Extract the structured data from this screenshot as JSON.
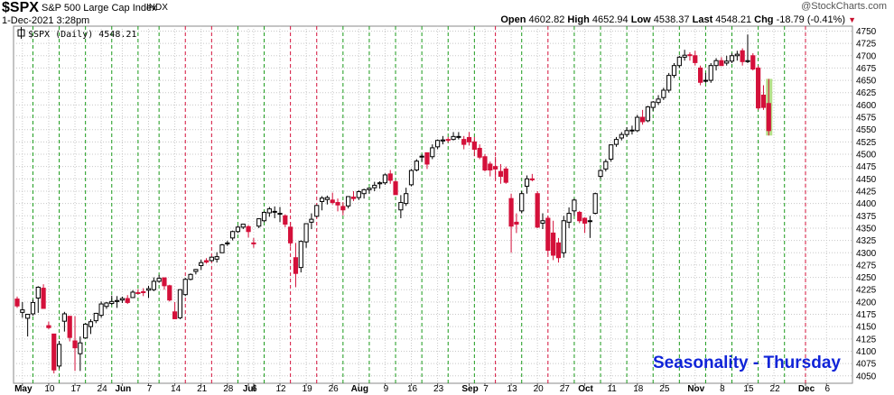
{
  "header": {
    "symbol": "$SPX",
    "description": "S&P 500 Large Cap Index",
    "exchange": "INDX",
    "date_time": "1-Dec-2021 3:28pm",
    "brand": "@StockCharts.com",
    "open_label": "Open",
    "open": "4602.82",
    "high_label": "High",
    "high": "4652.94",
    "low_label": "Low",
    "low": "4538.37",
    "last_label": "Last",
    "last": "4548.21",
    "chg_label": "Chg",
    "chg": "-18.79 (-0.41%)",
    "chg_arrow": "▼"
  },
  "colors": {
    "up": "#000000",
    "down": "#d4103a",
    "green_line": "#1a9a1a",
    "red_line": "#d4103a",
    "grid": "#c8c8c8",
    "annotation": "#1024d8",
    "highlight": "#b5e08a"
  },
  "chart_data": {
    "type": "candlestick",
    "legend": "$SPX (Daily) 4548.21",
    "annotation": "Seasonality - Thursday",
    "y_ticks": [
      4050,
      4075,
      4100,
      4125,
      4150,
      4175,
      4200,
      4225,
      4250,
      4275,
      4300,
      4325,
      4350,
      4375,
      4400,
      4425,
      4450,
      4475,
      4500,
      4525,
      4550,
      4575,
      4600,
      4625,
      4650,
      4675,
      4700,
      4725,
      4750
    ],
    "ylim": [
      4035,
      4760
    ],
    "x_labels": [
      "May",
      "10",
      "17",
      "24",
      "Jun",
      "7",
      "14",
      "21",
      "28",
      "Jul",
      "6",
      "12",
      "19",
      "26",
      "Aug",
      "9",
      "16",
      "23",
      "Sep",
      "7",
      "13",
      "20",
      "27",
      "Oct",
      "11",
      "18",
      "25",
      "Nov",
      "8",
      "15",
      "22",
      "Dec",
      "6"
    ],
    "x_label_bold": [
      true,
      false,
      false,
      false,
      true,
      false,
      false,
      false,
      false,
      true,
      false,
      false,
      false,
      false,
      true,
      false,
      false,
      false,
      true,
      false,
      false,
      false,
      false,
      true,
      false,
      false,
      false,
      true,
      false,
      false,
      false,
      true,
      false
    ],
    "x_label_slot": [
      1,
      6,
      11,
      16,
      20,
      25,
      30,
      35,
      40,
      44,
      45,
      50,
      55,
      60,
      65,
      70,
      75,
      80,
      86,
      89,
      94,
      99,
      104,
      108,
      113,
      118,
      123,
      129,
      134,
      139,
      144,
      150,
      154
    ],
    "thursday_slots": [
      3,
      8,
      13,
      18,
      23,
      27,
      32,
      37,
      42,
      47,
      52,
      57,
      62,
      67,
      72,
      77,
      82,
      87,
      91,
      96,
      101,
      106,
      111,
      116,
      121,
      126,
      131,
      136,
      141,
      146,
      150
    ],
    "thursday_down": [
      false,
      false,
      false,
      false,
      false,
      false,
      true,
      true,
      false,
      false,
      true,
      true,
      false,
      false,
      false,
      false,
      false,
      false,
      true,
      false,
      true,
      false,
      false,
      false,
      false,
      false,
      false,
      false,
      false,
      false,
      true
    ],
    "candles": [
      {
        "o": 4206,
        "h": 4211,
        "l": 4188,
        "c": 4192
      },
      {
        "o": 4179,
        "h": 4200,
        "l": 4168,
        "c": 4184
      },
      {
        "o": 4167,
        "h": 4176,
        "l": 4130,
        "c": 4175
      },
      {
        "o": 4176,
        "h": 4205,
        "l": 4172,
        "c": 4199
      },
      {
        "o": 4208,
        "h": 4232,
        "l": 4178,
        "c": 4230
      },
      {
        "o": 4228,
        "h": 4236,
        "l": 4192,
        "c": 4187
      },
      {
        "o": 4152,
        "h": 4160,
        "l": 4145,
        "c": 4148
      },
      {
        "o": 4135,
        "h": 4135,
        "l": 4055,
        "c": 4062
      },
      {
        "o": 4070,
        "h": 4121,
        "l": 4065,
        "c": 4114
      },
      {
        "o": 4161,
        "h": 4180,
        "l": 4140,
        "c": 4176
      },
      {
        "o": 4171,
        "h": 4171,
        "l": 4120,
        "c": 4128
      },
      {
        "o": 4121,
        "h": 4171,
        "l": 4060,
        "c": 4107
      },
      {
        "o": 4095,
        "h": 4130,
        "l": 4060,
        "c": 4117
      },
      {
        "o": 4127,
        "h": 4157,
        "l": 4126,
        "c": 4155
      },
      {
        "o": 4150,
        "h": 4165,
        "l": 4135,
        "c": 4160
      },
      {
        "o": 4162,
        "h": 4178,
        "l": 4157,
        "c": 4177
      },
      {
        "o": 4173,
        "h": 4201,
        "l": 4168,
        "c": 4196
      },
      {
        "o": 4191,
        "h": 4200,
        "l": 4186,
        "c": 4198
      },
      {
        "o": 4197,
        "h": 4213,
        "l": 4194,
        "c": 4201
      },
      {
        "o": 4201,
        "h": 4212,
        "l": 4188,
        "c": 4203
      },
      {
        "o": 4204,
        "h": 4211,
        "l": 4198,
        "c": 4207
      },
      {
        "o": 4207,
        "h": 4214,
        "l": 4196,
        "c": 4199
      },
      {
        "o": 4209,
        "h": 4224,
        "l": 4208,
        "c": 4220
      },
      {
        "o": 4219,
        "h": 4226,
        "l": 4216,
        "c": 4218
      },
      {
        "o": 4221,
        "h": 4228,
        "l": 4212,
        "c": 4219
      },
      {
        "o": 4224,
        "h": 4233,
        "l": 4208,
        "c": 4227
      },
      {
        "o": 4225,
        "h": 4250,
        "l": 4222,
        "c": 4242
      },
      {
        "o": 4242,
        "h": 4255,
        "l": 4239,
        "c": 4248
      },
      {
        "o": 4249,
        "h": 4250,
        "l": 4225,
        "c": 4233
      },
      {
        "o": 4233,
        "h": 4235,
        "l": 4201,
        "c": 4204
      },
      {
        "o": 4180,
        "h": 4200,
        "l": 4168,
        "c": 4166
      },
      {
        "o": 4168,
        "h": 4226,
        "l": 4165,
        "c": 4225
      },
      {
        "o": 4215,
        "h": 4249,
        "l": 4212,
        "c": 4246
      },
      {
        "o": 4246,
        "h": 4258,
        "l": 4244,
        "c": 4256
      },
      {
        "o": 4262,
        "h": 4267,
        "l": 4256,
        "c": 4266
      },
      {
        "o": 4274,
        "h": 4286,
        "l": 4265,
        "c": 4280
      },
      {
        "o": 4284,
        "h": 4289,
        "l": 4278,
        "c": 4281
      },
      {
        "o": 4284,
        "h": 4292,
        "l": 4282,
        "c": 4291
      },
      {
        "o": 4287,
        "h": 4301,
        "l": 4280,
        "c": 4292
      },
      {
        "o": 4300,
        "h": 4318,
        "l": 4300,
        "c": 4316
      },
      {
        "o": 4318,
        "h": 4324,
        "l": 4314,
        "c": 4320
      },
      {
        "o": 4330,
        "h": 4345,
        "l": 4325,
        "c": 4343
      },
      {
        "o": 4343,
        "h": 4355,
        "l": 4340,
        "c": 4352
      },
      {
        "o": 4352,
        "h": 4358,
        "l": 4348,
        "c": 4358
      },
      {
        "o": 4353,
        "h": 4356,
        "l": 4331,
        "c": 4343
      },
      {
        "o": 4320,
        "h": 4330,
        "l": 4310,
        "c": 4318
      },
      {
        "o": 4354,
        "h": 4369,
        "l": 4350,
        "c": 4369
      },
      {
        "o": 4365,
        "h": 4384,
        "l": 4362,
        "c": 4382
      },
      {
        "o": 4381,
        "h": 4393,
        "l": 4373,
        "c": 4389
      },
      {
        "o": 4383,
        "h": 4394,
        "l": 4370,
        "c": 4384
      },
      {
        "o": 4380,
        "h": 4393,
        "l": 4362,
        "c": 4380
      },
      {
        "o": 4375,
        "h": 4378,
        "l": 4352,
        "c": 4358
      },
      {
        "o": 4352,
        "h": 4362,
        "l": 4312,
        "c": 4320
      },
      {
        "o": 4290,
        "h": 4320,
        "l": 4230,
        "c": 4258
      },
      {
        "o": 4270,
        "h": 4325,
        "l": 4260,
        "c": 4323
      },
      {
        "o": 4322,
        "h": 4360,
        "l": 4310,
        "c": 4359
      },
      {
        "o": 4362,
        "h": 4380,
        "l": 4348,
        "c": 4368
      },
      {
        "o": 4374,
        "h": 4397,
        "l": 4372,
        "c": 4396
      },
      {
        "o": 4404,
        "h": 4415,
        "l": 4386,
        "c": 4411
      },
      {
        "o": 4408,
        "h": 4416,
        "l": 4398,
        "c": 4412
      },
      {
        "o": 4407,
        "h": 4422,
        "l": 4398,
        "c": 4402
      },
      {
        "o": 4402,
        "h": 4410,
        "l": 4384,
        "c": 4397
      },
      {
        "o": 4394,
        "h": 4403,
        "l": 4376,
        "c": 4387
      },
      {
        "o": 4395,
        "h": 4415,
        "l": 4390,
        "c": 4414
      },
      {
        "o": 4413,
        "h": 4425,
        "l": 4405,
        "c": 4410
      },
      {
        "o": 4412,
        "h": 4427,
        "l": 4407,
        "c": 4424
      },
      {
        "o": 4420,
        "h": 4430,
        "l": 4410,
        "c": 4428
      },
      {
        "o": 4428,
        "h": 4432,
        "l": 4420,
        "c": 4431
      },
      {
        "o": 4432,
        "h": 4444,
        "l": 4425,
        "c": 4437
      },
      {
        "o": 4440,
        "h": 4445,
        "l": 4430,
        "c": 4442
      },
      {
        "o": 4442,
        "h": 4461,
        "l": 4438,
        "c": 4458
      },
      {
        "o": 4460,
        "h": 4468,
        "l": 4440,
        "c": 4447
      },
      {
        "o": 4444,
        "h": 4447,
        "l": 4418,
        "c": 4418
      },
      {
        "o": 4387,
        "h": 4417,
        "l": 4370,
        "c": 4402
      },
      {
        "o": 4400,
        "h": 4432,
        "l": 4395,
        "c": 4420
      },
      {
        "o": 4438,
        "h": 4470,
        "l": 4435,
        "c": 4467
      },
      {
        "o": 4468,
        "h": 4490,
        "l": 4465,
        "c": 4486
      },
      {
        "o": 4495,
        "h": 4500,
        "l": 4485,
        "c": 4496
      },
      {
        "o": 4503,
        "h": 4503,
        "l": 4470,
        "c": 4480
      },
      {
        "o": 4495,
        "h": 4520,
        "l": 4490,
        "c": 4513
      },
      {
        "o": 4515,
        "h": 4530,
        "l": 4510,
        "c": 4528
      },
      {
        "o": 4527,
        "h": 4537,
        "l": 4520,
        "c": 4529
      },
      {
        "o": 4530,
        "h": 4535,
        "l": 4524,
        "c": 4529
      },
      {
        "o": 4530,
        "h": 4545,
        "l": 4528,
        "c": 4536
      },
      {
        "o": 4536,
        "h": 4545,
        "l": 4530,
        "c": 4536
      },
      {
        "o": 4530,
        "h": 4537,
        "l": 4510,
        "c": 4520
      },
      {
        "o": 4534,
        "h": 4545,
        "l": 4518,
        "c": 4525
      },
      {
        "o": 4525,
        "h": 4535,
        "l": 4496,
        "c": 4510
      },
      {
        "o": 4512,
        "h": 4520,
        "l": 4490,
        "c": 4494
      },
      {
        "o": 4495,
        "h": 4500,
        "l": 4465,
        "c": 4468
      },
      {
        "o": 4480,
        "h": 4485,
        "l": 4455,
        "c": 4468
      },
      {
        "o": 4475,
        "h": 4495,
        "l": 4450,
        "c": 4470
      },
      {
        "o": 4465,
        "h": 4480,
        "l": 4440,
        "c": 4455
      },
      {
        "o": 4470,
        "h": 4475,
        "l": 4440,
        "c": 4443
      },
      {
        "o": 4410,
        "h": 4420,
        "l": 4300,
        "c": 4354
      },
      {
        "o": 4362,
        "h": 4380,
        "l": 4340,
        "c": 4358
      },
      {
        "o": 4385,
        "h": 4425,
        "l": 4380,
        "c": 4420
      },
      {
        "o": 4435,
        "h": 4457,
        "l": 4420,
        "c": 4450
      },
      {
        "o": 4450,
        "h": 4460,
        "l": 4445,
        "c": 4448
      },
      {
        "o": 4420,
        "h": 4425,
        "l": 4350,
        "c": 4352
      },
      {
        "o": 4360,
        "h": 4380,
        "l": 4348,
        "c": 4365
      },
      {
        "o": 4370,
        "h": 4375,
        "l": 4296,
        "c": 4305
      },
      {
        "o": 4340,
        "h": 4365,
        "l": 4285,
        "c": 4295
      },
      {
        "o": 4320,
        "h": 4330,
        "l": 4280,
        "c": 4290
      },
      {
        "o": 4300,
        "h": 4375,
        "l": 4290,
        "c": 4365
      },
      {
        "o": 4362,
        "h": 4392,
        "l": 4350,
        "c": 4380
      },
      {
        "o": 4385,
        "h": 4410,
        "l": 4375,
        "c": 4407
      },
      {
        "o": 4382,
        "h": 4385,
        "l": 4360,
        "c": 4365
      },
      {
        "o": 4370,
        "h": 4372,
        "l": 4340,
        "c": 4360
      },
      {
        "o": 4365,
        "h": 4375,
        "l": 4330,
        "c": 4365
      },
      {
        "o": 4380,
        "h": 4422,
        "l": 4378,
        "c": 4420
      },
      {
        "o": 4455,
        "h": 4470,
        "l": 4450,
        "c": 4467
      },
      {
        "o": 4470,
        "h": 4490,
        "l": 4465,
        "c": 4485
      },
      {
        "o": 4490,
        "h": 4520,
        "l": 4485,
        "c": 4519
      },
      {
        "o": 4520,
        "h": 4535,
        "l": 4515,
        "c": 4530
      },
      {
        "o": 4533,
        "h": 4545,
        "l": 4528,
        "c": 4540
      },
      {
        "o": 4540,
        "h": 4555,
        "l": 4535,
        "c": 4548
      },
      {
        "o": 4548,
        "h": 4558,
        "l": 4540,
        "c": 4549
      },
      {
        "o": 4548,
        "h": 4580,
        "l": 4545,
        "c": 4575
      },
      {
        "o": 4575,
        "h": 4590,
        "l": 4560,
        "c": 4566
      },
      {
        "o": 4568,
        "h": 4598,
        "l": 4565,
        "c": 4596
      },
      {
        "o": 4595,
        "h": 4608,
        "l": 4588,
        "c": 4606
      },
      {
        "o": 4605,
        "h": 4620,
        "l": 4600,
        "c": 4612
      },
      {
        "o": 4615,
        "h": 4635,
        "l": 4610,
        "c": 4630
      },
      {
        "o": 4630,
        "h": 4665,
        "l": 4625,
        "c": 4660
      },
      {
        "o": 4660,
        "h": 4685,
        "l": 4655,
        "c": 4680
      },
      {
        "o": 4680,
        "h": 4700,
        "l": 4675,
        "c": 4697
      },
      {
        "o": 4697,
        "h": 4712,
        "l": 4690,
        "c": 4701
      },
      {
        "o": 4702,
        "h": 4707,
        "l": 4690,
        "c": 4701
      },
      {
        "o": 4700,
        "h": 4710,
        "l": 4680,
        "c": 4686
      },
      {
        "o": 4675,
        "h": 4680,
        "l": 4640,
        "c": 4646
      },
      {
        "o": 4650,
        "h": 4665,
        "l": 4645,
        "c": 4650
      },
      {
        "o": 4650,
        "h": 4685,
        "l": 4645,
        "c": 4680
      },
      {
        "o": 4680,
        "h": 4695,
        "l": 4670,
        "c": 4690
      },
      {
        "o": 4690,
        "h": 4697,
        "l": 4680,
        "c": 4680
      },
      {
        "o": 4685,
        "h": 4700,
        "l": 4680,
        "c": 4689
      },
      {
        "o": 4689,
        "h": 4705,
        "l": 4685,
        "c": 4700
      },
      {
        "o": 4700,
        "h": 4710,
        "l": 4690,
        "c": 4703
      },
      {
        "o": 4710,
        "h": 4715,
        "l": 4680,
        "c": 4688
      },
      {
        "o": 4688,
        "h": 4743,
        "l": 4685,
        "c": 4690
      },
      {
        "o": 4700,
        "h": 4705,
        "l": 4670,
        "c": 4673
      },
      {
        "o": 4675,
        "h": 4680,
        "l": 4590,
        "c": 4594
      },
      {
        "o": 4620,
        "h": 4640,
        "l": 4590,
        "c": 4595
      },
      {
        "o": 4603,
        "h": 4653,
        "l": 4538,
        "c": 4548
      }
    ]
  }
}
